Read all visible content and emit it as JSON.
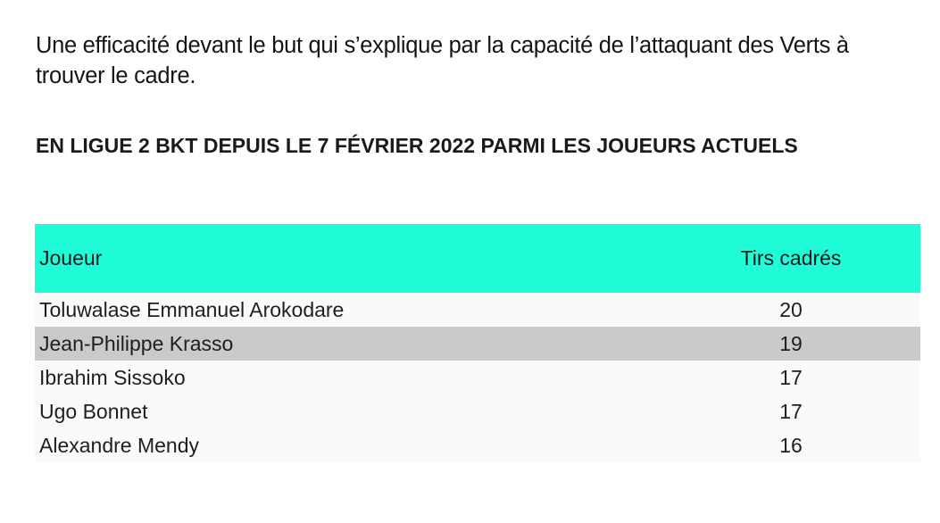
{
  "intro": {
    "text": "Une efficacité devant le but qui s’explique par la capacité de l’attaquant des Verts à trouver le cadre."
  },
  "heading": {
    "text": "EN LIGUE 2 BKT DEPUIS LE 7 FÉVRIER 2022 PARMI LES JOUEURS ACTUELS"
  },
  "table": {
    "header_color": "#1ffcd7",
    "highlight_color": "#c9cacc",
    "columns": [
      "Joueur",
      "Tirs cadrés"
    ],
    "rows": [
      {
        "player": "Toluwalase Emmanuel Arokodare",
        "shots": "20"
      },
      {
        "player": "Jean-Philippe Krasso",
        "shots": "19"
      },
      {
        "player": "Ibrahim Sissoko",
        "shots": "17"
      },
      {
        "player": "Ugo Bonnet",
        "shots": "17"
      },
      {
        "player": "Alexandre Mendy",
        "shots": "16"
      }
    ]
  }
}
